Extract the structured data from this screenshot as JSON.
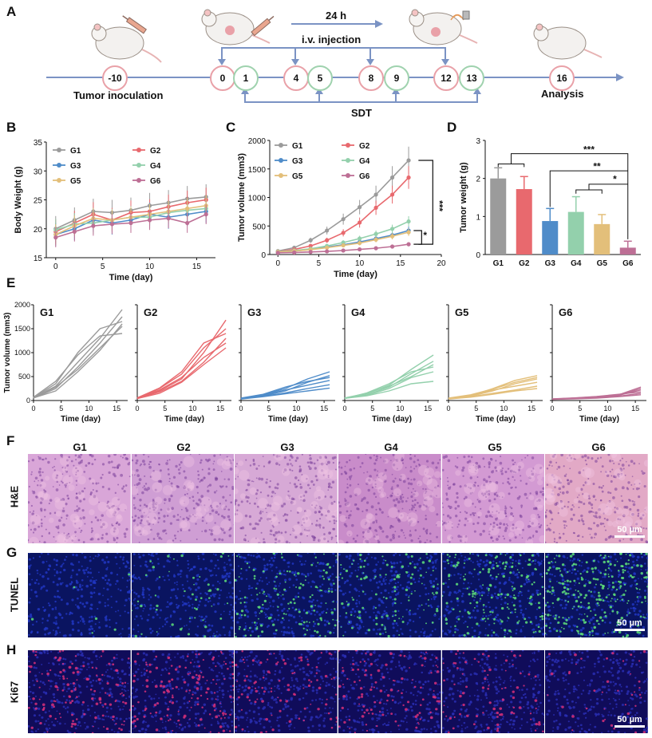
{
  "panel_letters": {
    "a": "A",
    "b": "B",
    "c": "C",
    "d": "D",
    "e": "E",
    "f": "F",
    "g": "G",
    "h": "H"
  },
  "timeline": {
    "interval_label": "24 h",
    "injection_label": "i.v. injection",
    "sdt_label": "SDT",
    "start_day": "-10",
    "start_caption": "Tumor inoculation",
    "end_day": "16",
    "end_caption": "Analysis",
    "days": [
      {
        "label": "0",
        "kind": "pink"
      },
      {
        "label": "1",
        "kind": "green"
      },
      {
        "label": "4",
        "kind": "pink"
      },
      {
        "label": "5",
        "kind": "green"
      },
      {
        "label": "8",
        "kind": "pink"
      },
      {
        "label": "9",
        "kind": "green"
      },
      {
        "label": "12",
        "kind": "pink"
      },
      {
        "label": "13",
        "kind": "green"
      }
    ]
  },
  "colors": {
    "G1": "#9b9b9b",
    "G2": "#e8696e",
    "G3": "#4f8cc9",
    "G4": "#93d0ac",
    "G5": "#e3bf7a",
    "G6": "#bd6f95"
  },
  "chart_data": [
    {
      "id": "B",
      "type": "line",
      "title": "",
      "xlabel": "Time (day)",
      "ylabel": "Body Weight (g)",
      "xlim": [
        -1,
        17
      ],
      "ylim": [
        15,
        35
      ],
      "xticks": [
        "0",
        "5",
        "10",
        "15"
      ],
      "yticks": [
        "15",
        "20",
        "25",
        "30",
        "35"
      ],
      "x": [
        0,
        2,
        4,
        6,
        8,
        10,
        12,
        14,
        16
      ],
      "series": [
        {
          "name": "G1",
          "values": [
            20.0,
            21.5,
            23.0,
            22.8,
            23.2,
            24.0,
            24.5,
            25.2,
            25.5
          ]
        },
        {
          "name": "G2",
          "values": [
            19.5,
            21.0,
            22.5,
            21.5,
            22.8,
            23.0,
            23.8,
            24.5,
            25.0
          ]
        },
        {
          "name": "G3",
          "values": [
            19.0,
            20.0,
            21.5,
            21.0,
            21.5,
            22.5,
            22.0,
            22.5,
            23.0
          ]
        },
        {
          "name": "G4",
          "values": [
            19.8,
            20.8,
            21.0,
            21.5,
            22.0,
            22.0,
            22.8,
            23.2,
            23.5
          ]
        },
        {
          "name": "G5",
          "values": [
            19.0,
            20.5,
            21.8,
            21.5,
            22.0,
            22.5,
            23.0,
            23.5,
            24.0
          ]
        },
        {
          "name": "G6",
          "values": [
            18.5,
            19.5,
            20.5,
            20.8,
            21.0,
            21.5,
            21.8,
            21.0,
            22.5
          ]
        }
      ]
    },
    {
      "id": "C",
      "type": "line",
      "title": "",
      "xlabel": "Time (day)",
      "ylabel": "Tumor volume (mm3)",
      "xlim": [
        -1,
        20
      ],
      "ylim": [
        0,
        2000
      ],
      "xticks": [
        "0",
        "5",
        "10",
        "15",
        "20"
      ],
      "yticks": [
        "0",
        "500",
        "1000",
        "1500",
        "2000"
      ],
      "x": [
        0,
        2,
        4,
        6,
        8,
        10,
        12,
        14,
        16
      ],
      "significance": [
        "***",
        "*"
      ],
      "series": [
        {
          "name": "G1",
          "values": [
            60,
            120,
            250,
            420,
            620,
            830,
            1050,
            1350,
            1650
          ]
        },
        {
          "name": "G2",
          "values": [
            50,
            90,
            150,
            250,
            380,
            560,
            820,
            1050,
            1350
          ]
        },
        {
          "name": "G3",
          "values": [
            40,
            60,
            90,
            130,
            170,
            220,
            280,
            340,
            420
          ]
        },
        {
          "name": "G4",
          "values": [
            50,
            70,
            100,
            150,
            210,
            280,
            360,
            450,
            580
          ]
        },
        {
          "name": "G5",
          "values": [
            45,
            60,
            85,
            120,
            160,
            200,
            260,
            320,
            390
          ]
        },
        {
          "name": "G6",
          "values": [
            30,
            35,
            45,
            55,
            70,
            90,
            110,
            140,
            180
          ]
        }
      ]
    },
    {
      "id": "D",
      "type": "bar",
      "title": "",
      "xlabel": "",
      "ylabel": "Tumor weight (g)",
      "categories": [
        "G1",
        "G2",
        "G3",
        "G4",
        "G5",
        "G6"
      ],
      "values": [
        2.0,
        1.72,
        0.88,
        1.12,
        0.8,
        0.18
      ],
      "errors": [
        0.28,
        0.33,
        0.33,
        0.4,
        0.25,
        0.17
      ],
      "ylim": [
        0,
        3
      ],
      "yticks": [
        "0",
        "1",
        "2",
        "3"
      ],
      "significance": [
        "***",
        "**",
        "*"
      ]
    },
    {
      "id": "E",
      "type": "line",
      "title": "",
      "xlabel": "Time (day)",
      "ylabel": "Tumor volume (mm3)",
      "xticks": [
        "0",
        "5",
        "10",
        "15"
      ],
      "yticks": [
        "0",
        "500",
        "1000",
        "1500",
        "2000"
      ],
      "xlim": [
        0,
        17
      ],
      "ylim": [
        0,
        2000
      ],
      "x": [
        0,
        4,
        8,
        12,
        16
      ],
      "groups": [
        {
          "name": "G1",
          "curves": [
            [
              60,
              300,
              800,
              1300,
              1900
            ],
            [
              50,
              250,
              700,
              1200,
              1750
            ],
            [
              60,
              350,
              1000,
              1500,
              1650
            ],
            [
              50,
              280,
              650,
              1100,
              1550
            ],
            [
              70,
              400,
              950,
              1350,
              1400
            ],
            [
              55,
              200,
              600,
              1050,
              1600
            ]
          ]
        },
        {
          "name": "G2",
          "curves": [
            [
              40,
              200,
              450,
              1000,
              1680
            ],
            [
              50,
              250,
              550,
              1100,
              1500
            ],
            [
              45,
              180,
              400,
              800,
              1300
            ],
            [
              50,
              220,
              480,
              900,
              1200
            ],
            [
              40,
              150,
              380,
              750,
              1100
            ],
            [
              55,
              260,
              600,
              1200,
              1400
            ]
          ]
        },
        {
          "name": "G3",
          "curves": [
            [
              40,
              120,
              250,
              450,
              600
            ],
            [
              35,
              100,
              200,
              380,
              520
            ],
            [
              45,
              110,
              220,
              320,
              420
            ],
            [
              40,
              90,
              160,
              250,
              330
            ],
            [
              30,
              80,
              140,
              200,
              260
            ],
            [
              50,
              130,
              280,
              400,
              480
            ]
          ]
        },
        {
          "name": "G4",
          "curves": [
            [
              50,
              140,
              320,
              650,
              950
            ],
            [
              45,
              120,
              280,
              560,
              820
            ],
            [
              40,
              160,
              350,
              600,
              700
            ],
            [
              50,
              110,
              250,
              480,
              600
            ],
            [
              45,
              100,
              200,
              350,
              400
            ],
            [
              55,
              150,
              300,
              500,
              750
            ]
          ]
        },
        {
          "name": "G5",
          "curves": [
            [
              40,
              100,
              250,
              420,
              520
            ],
            [
              35,
              90,
              200,
              350,
              450
            ],
            [
              45,
              110,
              220,
              300,
              380
            ],
            [
              40,
              80,
              150,
              220,
              300
            ],
            [
              30,
              70,
              130,
              200,
              250
            ],
            [
              50,
              120,
              240,
              380,
              480
            ]
          ]
        },
        {
          "name": "G6",
          "curves": [
            [
              30,
              50,
              80,
              120,
              280
            ],
            [
              25,
              45,
              70,
              110,
              220
            ],
            [
              35,
              55,
              85,
              130,
              180
            ],
            [
              30,
              40,
              60,
              90,
              150
            ],
            [
              25,
              35,
              50,
              80,
              120
            ],
            [
              30,
              50,
              75,
              110,
              250
            ]
          ]
        }
      ]
    }
  ],
  "histology": {
    "groups": [
      "G1",
      "G2",
      "G3",
      "G4",
      "G5",
      "G6"
    ],
    "rows": [
      {
        "label": "H&E",
        "scale": "50 µm"
      },
      {
        "label": "TUNEL",
        "scale": "50 µm"
      },
      {
        "label": "Ki67",
        "scale": "50 µm"
      }
    ]
  }
}
